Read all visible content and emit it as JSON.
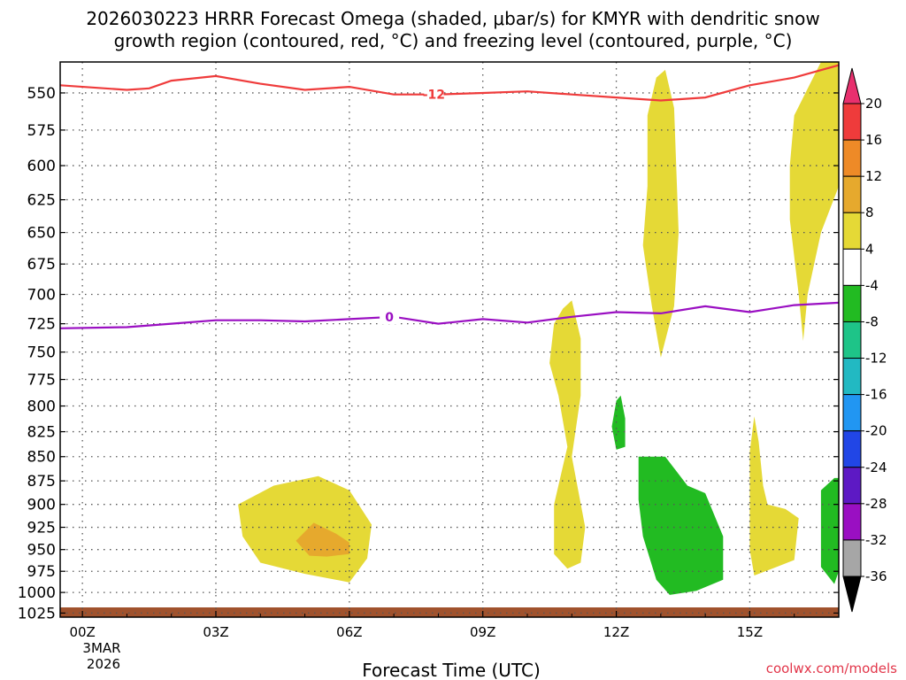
{
  "title_line1": "2026030223 HRRR Forecast Omega (shaded, μbar/s) for KMYR with dendritic snow",
  "title_line2": "growth region (contoured, red, °C) and freezing level (contoured, purple, °C)",
  "xlabel": "Forecast Time (UTC)",
  "watermark": "coolwx.com/models",
  "x_ticks": [
    "00Z",
    "03Z",
    "06Z",
    "09Z",
    "12Z",
    "15Z"
  ],
  "x_date_line1": "3MAR",
  "x_date_line2": "2026",
  "y_ticks": [
    "550",
    "575",
    "600",
    "625",
    "650",
    "675",
    "700",
    "725",
    "750",
    "775",
    "800",
    "825",
    "850",
    "875",
    "900",
    "925",
    "950",
    "975",
    "1000",
    "1025"
  ],
  "colorbar": {
    "labels": [
      "20",
      "16",
      "12",
      "8",
      "4",
      "-4",
      "-8",
      "-12",
      "-16",
      "-20",
      "-24",
      "-28",
      "-32",
      "-36"
    ],
    "colors": [
      "#e8306e",
      "#ef3b3b",
      "#ee8a27",
      "#e6a92d",
      "#e5d936",
      "#ffffff",
      "#22bb22",
      "#1ec488",
      "#22b9c2",
      "#2196f2",
      "#2146e6",
      "#5d19c4",
      "#9a0fc2",
      "#a6a6a6",
      "#000000"
    ]
  },
  "chart_data": {
    "type": "contour",
    "x_range_hours": [
      -0.5,
      17
    ],
    "y_range_hpa": [
      530,
      1030
    ],
    "y_scale": "log-pressure (inverted)",
    "grid": true,
    "colorbar_placement": "right",
    "dendritic_snow_growth_contour": {
      "label": "-12",
      "color": "#ef3b3b",
      "x_hours": [
        -0.5,
        1,
        1.5,
        2,
        3,
        4,
        5,
        6,
        7,
        8,
        9,
        10,
        11,
        12,
        13,
        14,
        15,
        16,
        17
      ],
      "pressure_hpa": [
        545,
        548,
        547,
        542,
        539,
        544,
        548,
        546,
        551,
        551,
        550,
        549,
        551,
        553,
        555,
        553,
        545,
        540,
        532
      ]
    },
    "freezing_level_contour": {
      "label": "0",
      "color": "#9a0fc2",
      "x_hours": [
        -0.5,
        1,
        2,
        3,
        4,
        5,
        6,
        7,
        8,
        9,
        10,
        11,
        12,
        13,
        14,
        15,
        16,
        17
      ],
      "pressure_hpa": [
        729,
        728,
        725,
        722,
        722,
        723,
        721,
        719,
        725,
        721,
        724,
        719,
        715,
        716,
        710,
        715,
        709,
        707
      ]
    },
    "omega_shaded_regions": [
      {
        "name": "rising-motion-4-8 early",
        "color": "#e5d936",
        "points": [
          [
            3.5,
            900
          ],
          [
            4.3,
            880
          ],
          [
            5.3,
            870
          ],
          [
            6,
            885
          ],
          [
            6.5,
            922
          ],
          [
            6.4,
            960
          ],
          [
            6,
            988
          ],
          [
            5,
            978
          ],
          [
            4,
            965
          ],
          [
            3.6,
            935
          ]
        ]
      },
      {
        "name": "rising-motion-8-12 early",
        "color": "#e6a92d",
        "points": [
          [
            4.8,
            940
          ],
          [
            5.2,
            920
          ],
          [
            5.7,
            932
          ],
          [
            6,
            942
          ],
          [
            6,
            955
          ],
          [
            5.5,
            958
          ],
          [
            5.1,
            957
          ]
        ]
      },
      {
        "name": "rising-motion-4-8 11Z column",
        "color": "#e5d936",
        "points": [
          [
            10.6,
            725
          ],
          [
            10.8,
            712
          ],
          [
            11,
            705
          ],
          [
            11.2,
            738
          ],
          [
            11.2,
            790
          ],
          [
            11,
            850
          ],
          [
            11.3,
            925
          ],
          [
            11.2,
            965
          ],
          [
            10.9,
            972
          ],
          [
            10.6,
            955
          ],
          [
            10.6,
            900
          ],
          [
            10.9,
            840
          ],
          [
            10.7,
            790
          ],
          [
            10.5,
            760
          ]
        ]
      },
      {
        "name": "rising-motion-4-8 13Z column",
        "color": "#e5d936",
        "points": [
          [
            12.7,
            615
          ],
          [
            12.7,
            565
          ],
          [
            12.9,
            540
          ],
          [
            13.1,
            535
          ],
          [
            13.3,
            560
          ],
          [
            13.4,
            650
          ],
          [
            13.3,
            710
          ],
          [
            13,
            755
          ],
          [
            12.8,
            710
          ],
          [
            12.6,
            660
          ]
        ]
      },
      {
        "name": "rising-motion-4-8 15Z column",
        "color": "#e5d936",
        "points": [
          [
            15,
            845
          ],
          [
            15.1,
            810
          ],
          [
            15.2,
            835
          ],
          [
            15.3,
            880
          ],
          [
            15.4,
            900
          ],
          [
            15.8,
            905
          ],
          [
            16.1,
            915
          ],
          [
            16,
            962
          ],
          [
            15.6,
            970
          ],
          [
            15.1,
            980
          ],
          [
            15,
            950
          ]
        ]
      },
      {
        "name": "rising-motion-4-8 upper right",
        "color": "#e5d936",
        "points": [
          [
            16,
            565
          ],
          [
            16.6,
            530
          ],
          [
            17,
            530
          ],
          [
            17,
            615
          ],
          [
            16.6,
            650
          ],
          [
            16.3,
            700
          ],
          [
            16.2,
            740
          ],
          [
            16.1,
            700
          ],
          [
            15.9,
            640
          ],
          [
            15.9,
            600
          ]
        ]
      },
      {
        "name": "sinking-motion-4-8 12Z small",
        "color": "#22bb22",
        "points": [
          [
            12,
            795
          ],
          [
            12.1,
            790
          ],
          [
            12.2,
            812
          ],
          [
            12.2,
            840
          ],
          [
            12,
            843
          ],
          [
            11.9,
            820
          ]
        ]
      },
      {
        "name": "sinking-motion-4-8 13Z",
        "color": "#22bb22",
        "points": [
          [
            12.5,
            850
          ],
          [
            13.1,
            850
          ],
          [
            13.6,
            880
          ],
          [
            14,
            888
          ],
          [
            14.4,
            935
          ],
          [
            14.4,
            985
          ],
          [
            13.8,
            998
          ],
          [
            13.2,
            1003
          ],
          [
            12.9,
            985
          ],
          [
            12.6,
            935
          ],
          [
            12.5,
            895
          ]
        ]
      },
      {
        "name": "sinking-motion-4-8 right edge",
        "color": "#22bb22",
        "points": [
          [
            16.6,
            885
          ],
          [
            16.9,
            872
          ],
          [
            17,
            872
          ],
          [
            17,
            975
          ],
          [
            16.9,
            990
          ],
          [
            16.6,
            970
          ],
          [
            16.6,
            920
          ]
        ]
      }
    ]
  }
}
